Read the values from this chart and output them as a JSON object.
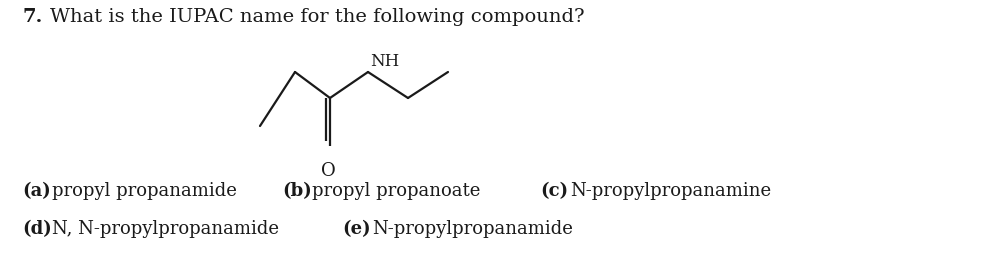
{
  "question_number": "7.",
  "question_text": "What is the IUPAC name for the following compound?",
  "background_color": "#ffffff",
  "text_color": "#1a1a1a",
  "options": [
    {
      "label": "a",
      "text": "propyl propanamide"
    },
    {
      "label": "b",
      "text": "propyl propanoate"
    },
    {
      "label": "c",
      "text": "N-propylpropanamine"
    },
    {
      "label": "d",
      "text": "N, N-propylpropanamide"
    },
    {
      "label": "e",
      "text": "N-propylpropanamide"
    }
  ],
  "molecule": {
    "color": "#1a1a1a",
    "linewidth": 1.6,
    "nh_label": "NH",
    "o_label": "O"
  }
}
